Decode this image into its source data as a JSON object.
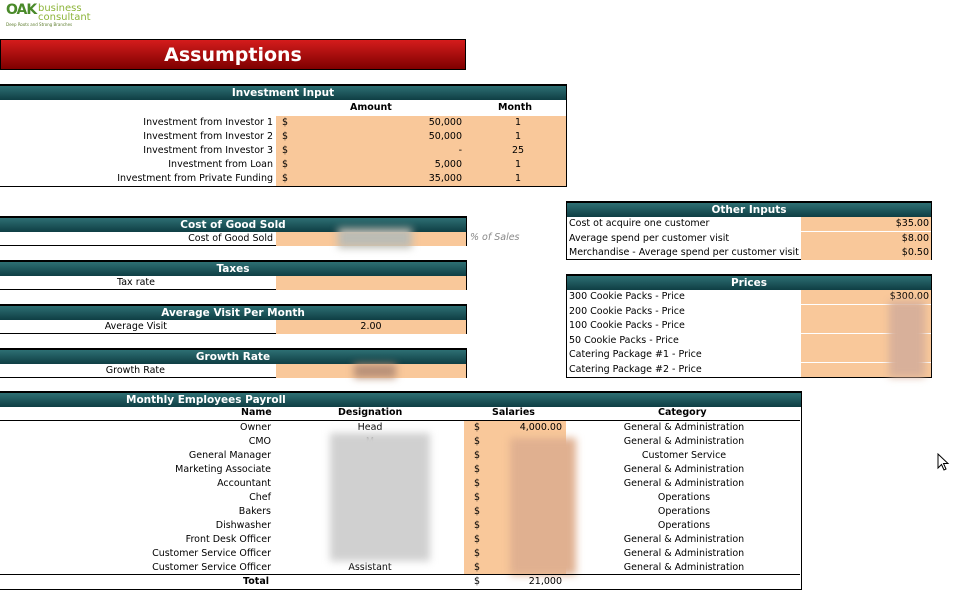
{
  "logo": {
    "mark": "OAK",
    "word1": "business",
    "word2": "consultant",
    "tagline": "Deep Roots and Strong Branches"
  },
  "title": "Assumptions",
  "investment": {
    "heading": "Investment Input",
    "col_amount": "Amount",
    "col_month": "Month",
    "rows": [
      {
        "label": "Investment from Investor 1",
        "currency": "$",
        "amount": "50,000",
        "month": "1"
      },
      {
        "label": "Investment from Investor 2",
        "currency": "$",
        "amount": "50,000",
        "month": "1"
      },
      {
        "label": "Investment from Investor 3",
        "currency": "$",
        "amount": "-",
        "month": "25"
      },
      {
        "label": "Investment from Loan",
        "currency": "$",
        "amount": "5,000",
        "month": "1"
      },
      {
        "label": "Investment from Private Funding",
        "currency": "$",
        "amount": "35,000",
        "month": "1"
      }
    ]
  },
  "cogs": {
    "heading": "Cost of Good Sold",
    "label": "Cost of Good Sold",
    "note": "% of Sales"
  },
  "taxes": {
    "heading": "Taxes",
    "label": "Tax rate"
  },
  "avg_visit": {
    "heading": "Average Visit Per Month",
    "label": "Average Visit",
    "value": "2.00"
  },
  "growth": {
    "heading": "Growth  Rate",
    "label": "Growth Rate"
  },
  "other": {
    "heading": "Other Inputs",
    "rows": [
      {
        "label": "Cost ot acquire one customer",
        "value": "$35.00"
      },
      {
        "label": "Average spend per customer visit",
        "value": "$8.00"
      },
      {
        "label": "Merchandise - Average spend per customer visit",
        "value": "$0.50"
      }
    ]
  },
  "prices": {
    "heading": "Prices",
    "rows": [
      {
        "label": "300 Cookie Packs - Price",
        "value": "$300.00"
      },
      {
        "label": "200 Cookie Packs - Price",
        "value": ""
      },
      {
        "label": "100 Cookie Packs - Price",
        "value": ""
      },
      {
        "label": "50 Cookie Packs - Price",
        "value": ""
      },
      {
        "label": "Catering Package #1 - Price",
        "value": ""
      },
      {
        "label": "Catering Package #2 - Price",
        "value": ""
      }
    ]
  },
  "payroll": {
    "heading": "Monthly Employees Payroll",
    "col_name": "Name",
    "col_designation": "Designation",
    "col_salaries": "Salaries",
    "col_category": "Category",
    "rows": [
      {
        "name": "Owner",
        "designation": "Head",
        "currency": "$",
        "salary": "4,000.00",
        "category": "General & Administration"
      },
      {
        "name": "CMO",
        "designation": "M",
        "currency": "$",
        "salary": "",
        "category": "General & Administration"
      },
      {
        "name": "General Manager",
        "designation": "",
        "currency": "$",
        "salary": "",
        "category": "Customer Service"
      },
      {
        "name": "Marketing Associate",
        "designation": "",
        "currency": "$",
        "salary": "",
        "category": "General & Administration"
      },
      {
        "name": "Accountant",
        "designation": "",
        "currency": "$",
        "salary": "",
        "category": "General & Administration"
      },
      {
        "name": "Chef",
        "designation": "",
        "currency": "$",
        "salary": "",
        "category": "Operations"
      },
      {
        "name": "Bakers",
        "designation": "",
        "currency": "$",
        "salary": "",
        "category": "Operations"
      },
      {
        "name": "Dishwasher",
        "designation": "",
        "currency": "$",
        "salary": "",
        "category": "Operations"
      },
      {
        "name": "Front Desk Officer",
        "designation": "",
        "currency": "$",
        "salary": "",
        "category": "General & Administration"
      },
      {
        "name": "Customer Service Officer",
        "designation": "",
        "currency": "$",
        "salary": "",
        "category": "General & Administration"
      },
      {
        "name": "Customer Service Officer",
        "designation": "Assistant",
        "currency": "$",
        "salary": "",
        "category": "General & Administration"
      }
    ],
    "total_label": "Total",
    "total_currency": "$",
    "total_value": "21,000"
  },
  "colors": {
    "title_red": "#b01010",
    "teal": "#1e5a5e",
    "peach": "#f9c89a"
  }
}
